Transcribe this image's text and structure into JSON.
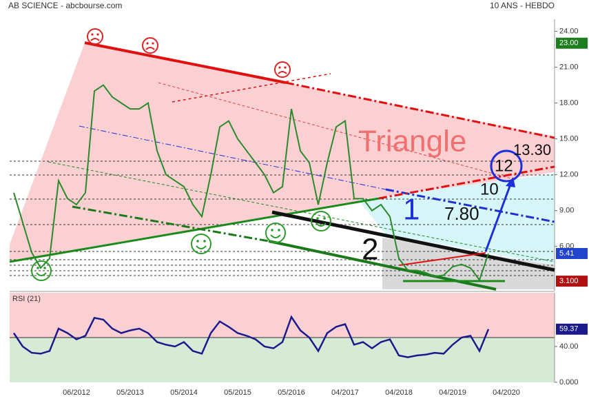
{
  "header": {
    "title": "AB SCIENCE - abcbourse.com",
    "period": "10 ANS - HEBDO"
  },
  "chart_data": [
    {
      "type": "line",
      "title": "AB SCIENCE - abcbourse.com",
      "categories": [
        null,
        null,
        null,
        null,
        null,
        null,
        null,
        "06/2012",
        null,
        null,
        null,
        null,
        null,
        "05/2013",
        null,
        null,
        null,
        null,
        null,
        "05/2014",
        null,
        null,
        null,
        null,
        null,
        "05/2015",
        null,
        null,
        null,
        null,
        null,
        "05/2016",
        null,
        null,
        null,
        null,
        null,
        "04/2017",
        null,
        null,
        null,
        null,
        null,
        "04/2018",
        null,
        null,
        null,
        null,
        null,
        "04/2019",
        null,
        null,
        null,
        null,
        null,
        "04/2020",
        null,
        null,
        null,
        null,
        null
      ],
      "series": [
        {
          "name": "AB SCIENCE",
          "color": "#2a8a2a",
          "values": [
            10.5,
            8,
            5.5,
            4.2,
            5,
            11.5,
            10,
            9.5,
            10.5,
            19,
            19.5,
            18.5,
            18,
            17.5,
            17.5,
            18,
            14,
            12,
            11.5,
            11,
            9.5,
            8.5,
            12,
            16,
            16.5,
            15,
            14,
            13,
            12,
            10.5,
            11,
            17.5,
            14,
            13,
            9.5,
            13,
            16,
            16.5,
            10,
            10,
            9,
            9.5,
            8.5,
            5,
            4,
            4,
            3.8,
            3.5,
            3.6,
            4.3,
            4.5,
            4.2,
            3.2,
            5.41,
            null,
            null,
            null,
            null,
            null,
            null,
            null
          ]
        }
      ],
      "ylim": [
        2.3,
        25
      ],
      "yticks": [
        {
          "value": 24,
          "label": "24.00"
        },
        {
          "value": 21,
          "label": "21.00"
        },
        {
          "value": 18,
          "label": "18.00"
        },
        {
          "value": 15,
          "label": "15.00"
        },
        {
          "value": 12,
          "label": "12.00"
        },
        {
          "value": 9,
          "label": "9.00"
        },
        {
          "value": 6,
          "label": "6.00"
        }
      ],
      "markers": [
        {
          "value": 23,
          "label": "23.00",
          "color": "#1e7d1e"
        },
        {
          "value": 3.1,
          "label": "3.100",
          "color": "#b01010"
        }
      ],
      "annotations": [
        "Triangle",
        "13.30",
        "12",
        "10",
        "7.80",
        "1",
        "2"
      ]
    },
    {
      "type": "line",
      "title": "RSI (21)",
      "series": [
        {
          "name": "RSI (21)",
          "color": "#1a1a8c",
          "values": [
            55,
            40,
            33,
            32,
            35,
            60,
            55,
            48,
            52,
            72,
            70,
            60,
            55,
            58,
            60,
            55,
            45,
            42,
            40,
            45,
            35,
            32,
            55,
            68,
            62,
            55,
            52,
            48,
            40,
            38,
            45,
            73,
            58,
            50,
            35,
            55,
            62,
            65,
            42,
            45,
            38,
            45,
            48,
            30,
            28,
            30,
            31,
            33,
            32,
            42,
            50,
            52,
            35,
            59.37,
            null,
            null,
            null,
            null,
            null,
            null,
            null
          ]
        }
      ],
      "ylim": [
        0,
        100
      ],
      "yticks": [
        {
          "value": 40,
          "label": "40.00"
        },
        {
          "value": 0,
          "label": "0.000"
        }
      ]
    }
  ]
}
